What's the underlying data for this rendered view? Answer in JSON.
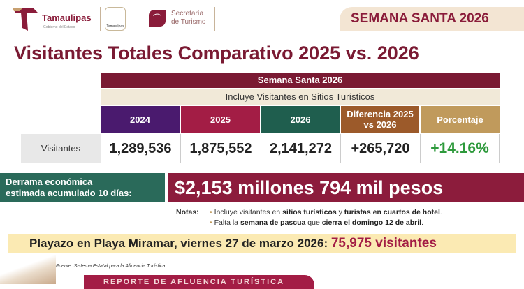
{
  "header": {
    "brand": "Tamaulipas",
    "brand_sub": "Gobierno del Estado",
    "seal_label": "Tamaulipas",
    "secretaria": "Secretaría",
    "turismo": "de Turismo",
    "badge": "SEMANA SANTA 2026"
  },
  "title": "Visitantes Totales Comparativo 2025 vs. 2026",
  "table": {
    "caption": "Semana Santa 2026",
    "subcaption": "Incluye Visitantes en Sitios Turísticos",
    "headers": [
      "2024",
      "2025",
      "2026",
      "Diferencia 2025 vs 2026",
      "Porcentaje"
    ],
    "row_label": "Visitantes",
    "values": [
      "1,289,536",
      "1,875,552",
      "2,141,272",
      "+265,720",
      "+14.16%"
    ]
  },
  "colors": {
    "c2024": "#4a1a6e",
    "c2025": "#a31d45",
    "c2026": "#1f5e4e",
    "diff": "#9c5a2a",
    "pct": "#c09a5c",
    "pct_text": "#2e9a3c"
  },
  "derrama": {
    "label1": "Derrama económica",
    "label2": "estimada acumulado 10 días:",
    "value": "$2,153 millones 794 mil pesos"
  },
  "notes": {
    "label": "Notas:",
    "n1_a": "Incluye visitantes en ",
    "n1_b": "sitios turísticos",
    "n1_c": " y ",
    "n1_d": "turistas en cuartos de hotel",
    "n1_e": ".",
    "n2_a": "Falta la ",
    "n2_b": "semana de pascua",
    "n2_c": " que ",
    "n2_d": "cierra el domingo 12 de abril",
    "n2_e": "."
  },
  "playazo": {
    "text": "Playazo en Playa Miramar, viernes 27 de marzo 2026: ",
    "value": "75,975 visitantes"
  },
  "fuente": "Fuente: Sistema Estatal para la Afluencia Turística.",
  "footer": "REPORTE DE AFLUENCIA TURÍSTICA"
}
